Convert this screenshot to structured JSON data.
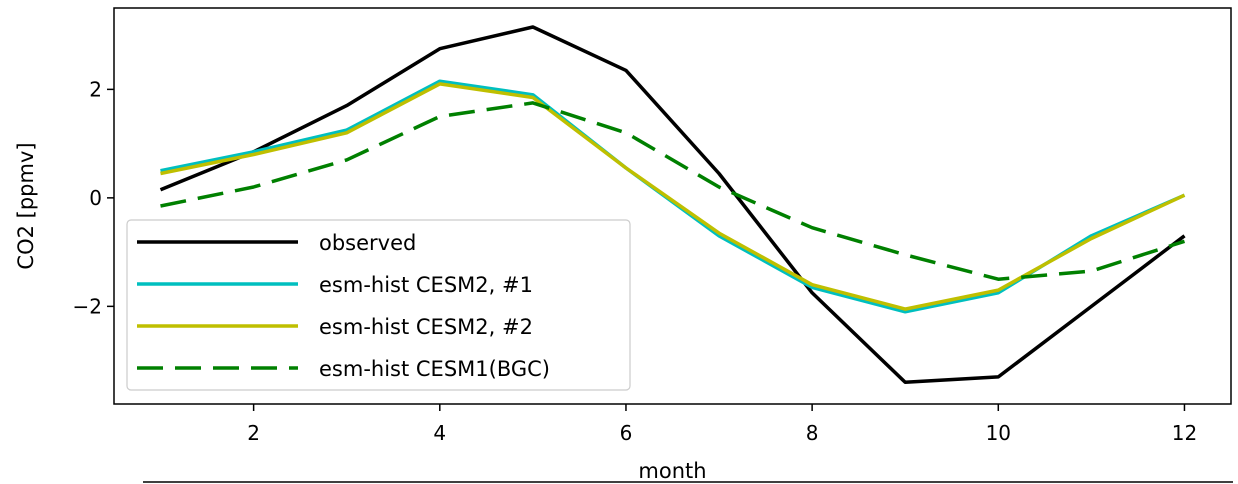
{
  "chart_data": {
    "type": "line",
    "title": "",
    "xlabel": "month",
    "ylabel": "CO2 [ppmv]",
    "xlim": [
      0.5,
      12.5
    ],
    "ylim": [
      -3.8,
      3.5
    ],
    "xticks": [
      2,
      4,
      6,
      8,
      10,
      12
    ],
    "xtick_labels": [
      "2",
      "4",
      "6",
      "8",
      "10",
      "12"
    ],
    "yticks": [
      2,
      0,
      -2
    ],
    "ytick_labels": [
      "2",
      "0",
      "−2"
    ],
    "grid": false,
    "legend_position": "lower-left",
    "x": [
      1,
      2,
      3,
      4,
      5,
      6,
      7,
      8,
      9,
      10,
      11,
      12
    ],
    "series": [
      {
        "name": "observed",
        "color": "#000000",
        "dash": "solid",
        "values": [
          0.15,
          0.85,
          1.7,
          2.75,
          3.15,
          2.35,
          0.45,
          -1.75,
          -3.4,
          -3.3,
          -2.0,
          -0.7
        ]
      },
      {
        "name": "esm-hist CESM2, #1",
        "color": "#00bfbf",
        "dash": "solid",
        "values": [
          0.5,
          0.85,
          1.25,
          2.15,
          1.9,
          0.55,
          -0.7,
          -1.65,
          -2.1,
          -1.75,
          -0.7,
          0.05
        ]
      },
      {
        "name": "esm-hist CESM2, #2",
        "color": "#bfbf00",
        "dash": "solid",
        "values": [
          0.45,
          0.8,
          1.2,
          2.1,
          1.85,
          0.55,
          -0.65,
          -1.6,
          -2.05,
          -1.7,
          -0.75,
          0.05
        ]
      },
      {
        "name": "esm-hist CESM1(BGC)",
        "color": "#008000",
        "dash": "dashed",
        "values": [
          -0.15,
          0.2,
          0.7,
          1.5,
          1.75,
          1.2,
          0.2,
          -0.55,
          -1.05,
          -1.5,
          -1.35,
          -0.8
        ]
      }
    ]
  }
}
